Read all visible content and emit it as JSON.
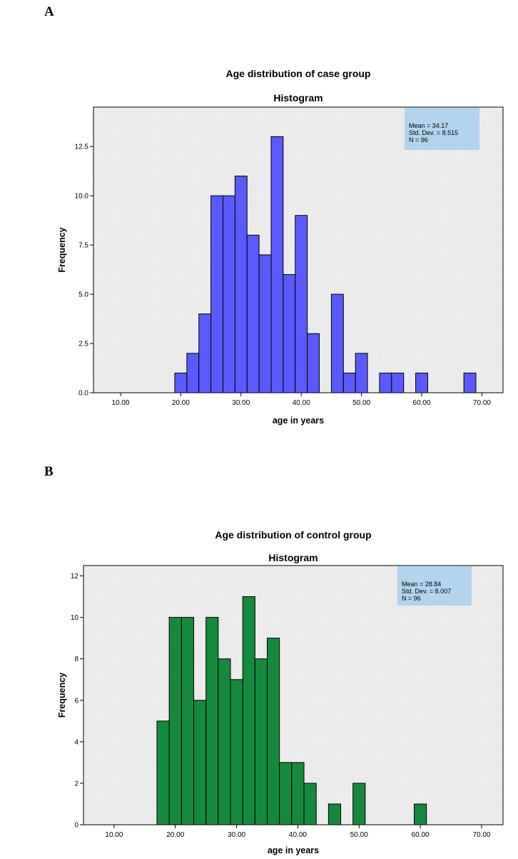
{
  "panels": {
    "a": {
      "label": "A"
    },
    "b": {
      "label": "B"
    }
  },
  "chart_data": [
    {
      "type": "bar",
      "title": "Age distribution of case group",
      "subtitle": "Histogram",
      "xlabel": "age in years",
      "ylabel": "Frequency",
      "xlim": [
        5.5,
        73.5
      ],
      "ylim": [
        0,
        14.5
      ],
      "bin_width": 2,
      "bar_color": "#5a5aff",
      "xticks": [
        10,
        20,
        30,
        40,
        50,
        60,
        70
      ],
      "xtick_labels": [
        "10.00",
        "20.00",
        "30.00",
        "40.00",
        "50.00",
        "60.00",
        "70.00"
      ],
      "yticks": [
        0,
        2.5,
        5,
        7.5,
        10,
        12.5
      ],
      "ytick_labels": [
        "0.0",
        "2.5",
        "5.0",
        "7.5",
        "10.0",
        "12.5"
      ],
      "bins": [
        {
          "center": 20,
          "value": 1
        },
        {
          "center": 22,
          "value": 2
        },
        {
          "center": 24,
          "value": 4
        },
        {
          "center": 26,
          "value": 10
        },
        {
          "center": 28,
          "value": 10
        },
        {
          "center": 30,
          "value": 11
        },
        {
          "center": 32,
          "value": 8
        },
        {
          "center": 34,
          "value": 7
        },
        {
          "center": 36,
          "value": 13
        },
        {
          "center": 38,
          "value": 6
        },
        {
          "center": 40,
          "value": 9
        },
        {
          "center": 42,
          "value": 3
        },
        {
          "center": 46,
          "value": 5
        },
        {
          "center": 48,
          "value": 1
        },
        {
          "center": 50,
          "value": 2
        },
        {
          "center": 54,
          "value": 1
        },
        {
          "center": 56,
          "value": 1
        },
        {
          "center": 60,
          "value": 1
        },
        {
          "center": 68,
          "value": 1
        }
      ],
      "stats": {
        "mean": "Mean = 34.17",
        "std": "Std. Dev. = 8.515",
        "n": "N = 96"
      }
    },
    {
      "type": "bar",
      "title": "Age distribution of control group",
      "subtitle": "Histogram",
      "xlabel": "age in years",
      "ylabel": "Frequency",
      "xlim": [
        5,
        73.5
      ],
      "ylim": [
        0,
        12.5
      ],
      "bin_width": 2,
      "bar_color": "#158a3c",
      "xticks": [
        10,
        20,
        30,
        40,
        50,
        60,
        70
      ],
      "xtick_labels": [
        "10.00",
        "20.00",
        "30.00",
        "40.00",
        "50.00",
        "60.00",
        "70.00"
      ],
      "yticks": [
        0,
        2,
        4,
        6,
        8,
        10,
        12
      ],
      "ytick_labels": [
        "0",
        "2",
        "4",
        "6",
        "8",
        "10",
        "12"
      ],
      "bins": [
        {
          "center": 18,
          "value": 5
        },
        {
          "center": 20,
          "value": 10
        },
        {
          "center": 22,
          "value": 10
        },
        {
          "center": 24,
          "value": 6
        },
        {
          "center": 26,
          "value": 10
        },
        {
          "center": 28,
          "value": 8
        },
        {
          "center": 30,
          "value": 7
        },
        {
          "center": 32,
          "value": 11
        },
        {
          "center": 34,
          "value": 8
        },
        {
          "center": 36,
          "value": 9
        },
        {
          "center": 38,
          "value": 3
        },
        {
          "center": 40,
          "value": 3
        },
        {
          "center": 42,
          "value": 2
        },
        {
          "center": 46,
          "value": 1
        },
        {
          "center": 50,
          "value": 2
        },
        {
          "center": 60,
          "value": 1
        }
      ],
      "stats": {
        "mean": "Mean = 28.84",
        "std": "Std. Dev. = 8.007",
        "n": "N = 96"
      }
    }
  ]
}
